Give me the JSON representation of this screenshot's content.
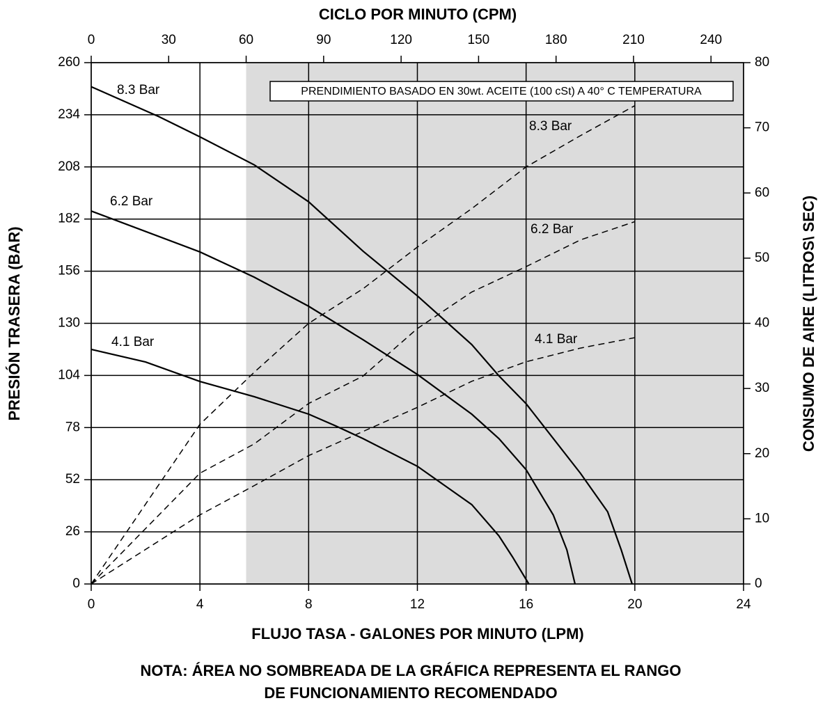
{
  "chart_data": {
    "type": "line",
    "x2_label": "CICLO POR MINUTO (CPM)",
    "xlabel": "FLUJO TASA - GALONES POR MINUTO (LPM)",
    "ylabel": "PRESIÓN TRASERA (BAR)",
    "y2label": "CONSUMO DE AIRE (LITROS\\ SEC)",
    "annotation": "PRENDIMIENTO BASADO EN 30wt. ACEITE (100 cSt) A 40° C TEMPERATURA",
    "note": [
      "NOTA: ÁREA NO SOMBREADA DE LA GRÁFICA REPRESENTA EL RANGO",
      "DE FUNCIONAMIENTO RECOMENDADO"
    ],
    "xlim": [
      0,
      24
    ],
    "xticks": [
      0,
      4,
      8,
      12,
      16,
      20,
      24
    ],
    "x2lim": [
      0,
      252.6
    ],
    "x2ticks": [
      0,
      30,
      60,
      90,
      120,
      150,
      180,
      210,
      240
    ],
    "ylim": [
      0,
      260
    ],
    "yticks": [
      0,
      26,
      52,
      78,
      104,
      130,
      156,
      182,
      208,
      234,
      260
    ],
    "y2lim": [
      0,
      80
    ],
    "y2ticks": [
      0,
      10,
      20,
      30,
      40,
      50,
      60,
      70,
      80
    ],
    "grid": true,
    "shaded_region": {
      "x": [
        5.7,
        24
      ],
      "color": "#dcdcdc"
    },
    "series": [
      {
        "name": "8.3 Bar",
        "color": "#000000",
        "style": "solid",
        "x": [
          0,
          2.5,
          4,
          6,
          8,
          10,
          12,
          14,
          15,
          16,
          18,
          19,
          19.5,
          19.9
        ],
        "values": [
          248,
          233,
          223,
          209,
          190.6,
          166,
          143.7,
          119.4,
          103.8,
          89.9,
          55.2,
          36,
          17,
          0
        ]
      },
      {
        "name": "6.2 Bar",
        "color": "#000000",
        "style": "solid",
        "x": [
          0,
          4,
          6,
          8,
          10,
          12,
          14,
          15,
          16,
          17,
          17.5,
          17.8
        ],
        "values": [
          186,
          165.6,
          153,
          138.5,
          121.8,
          104.5,
          84.7,
          72.5,
          57,
          34.4,
          17,
          0
        ]
      },
      {
        "name": "4.1 Bar",
        "color": "#000000",
        "style": "solid",
        "x": [
          0,
          2,
          4,
          6,
          8,
          9,
          10,
          12,
          14,
          15,
          15.5,
          16.1
        ],
        "values": [
          117,
          110.7,
          101,
          93.4,
          84.7,
          78.8,
          72.5,
          58.7,
          39.6,
          24,
          13.5,
          0
        ]
      },
      {
        "name": "8.3 Bar",
        "color": "#000000",
        "style": "dashed",
        "axis": "y2",
        "x": [
          0,
          4,
          6,
          8,
          10,
          12,
          14,
          16,
          18,
          20
        ],
        "values": [
          0,
          24.5,
          32.5,
          40,
          45.3,
          51.7,
          57.6,
          64,
          68.8,
          73.4
        ]
      },
      {
        "name": "6.2 Bar",
        "color": "#000000",
        "style": "dashed",
        "axis": "y2",
        "x": [
          0,
          4,
          6,
          8,
          10,
          12,
          14,
          16,
          18,
          20
        ],
        "values": [
          0,
          17,
          21.5,
          27.7,
          31.9,
          39.2,
          44.8,
          48.7,
          52.8,
          55.6
        ]
      },
      {
        "name": "4.1 Bar",
        "color": "#000000",
        "style": "dashed",
        "axis": "y2",
        "x": [
          0,
          4,
          6,
          8,
          10,
          12,
          14,
          16,
          18,
          20
        ],
        "values": [
          0,
          10.6,
          15.1,
          19.7,
          23.4,
          27.1,
          31.1,
          34.1,
          36.2,
          37.8
        ]
      }
    ]
  }
}
